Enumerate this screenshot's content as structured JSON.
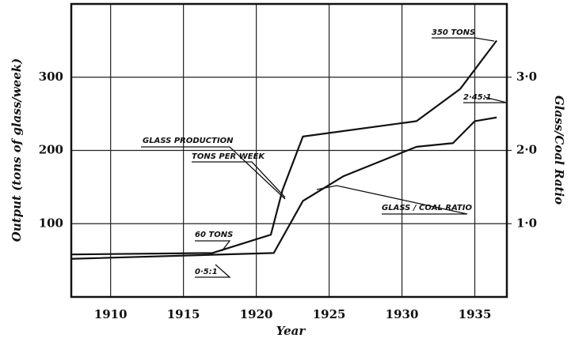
{
  "chart_data": {
    "type": "line",
    "x_label": "Year",
    "y_label": "Output (tons of glass/week)",
    "y2_label": "Glass/Coal Ratio",
    "xlim": [
      1907.3,
      1937.2
    ],
    "xticks": [
      1910,
      1915,
      1920,
      1925,
      1930,
      1935
    ],
    "ylim": [
      0,
      400
    ],
    "yticks": [
      100,
      200,
      300
    ],
    "y2lim": [
      0,
      4.0
    ],
    "y2ticks": [
      {
        "value": 1,
        "label": "1·0"
      },
      {
        "value": 2,
        "label": "2·0"
      },
      {
        "value": 3,
        "label": "3·0"
      }
    ],
    "grid": true,
    "series": [
      {
        "name": "GLASS PRODUCTION",
        "color": "#111111",
        "x": [
          1907.3,
          1917,
          1921,
          1921.8,
          1923.2,
          1931,
          1934,
          1936.5
        ],
        "values": [
          58,
          60,
          85,
          146,
          219,
          240,
          284,
          350
        ]
      },
      {
        "name": "GLASS / COAL RATIO",
        "color": "#111111",
        "axis": "y2",
        "x": [
          1907.3,
          1921.2,
          1923.2,
          1926,
          1931,
          1933.5,
          1935,
          1936.5
        ],
        "values": [
          0.52,
          0.6,
          1.31,
          1.65,
          2.05,
          2.1,
          2.4,
          2.45
        ]
      }
    ],
    "annotations": [
      "350 TONS",
      "2·45:1",
      "TONS PER WEEK",
      "60 TONS",
      "0·5:1"
    ]
  }
}
